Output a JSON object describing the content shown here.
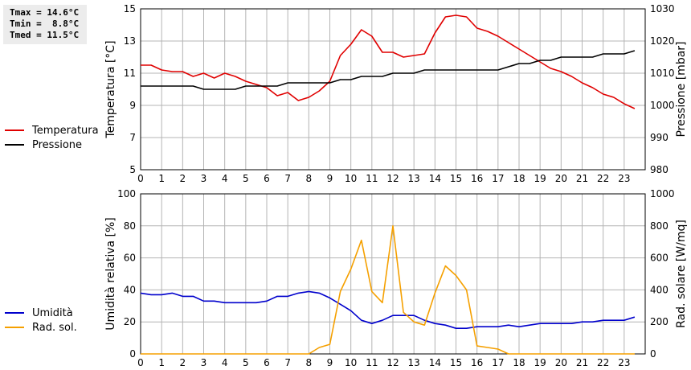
{
  "stats": {
    "tmax": "Tmax = 14.6°C",
    "tmin": "Tmin =  8.8°C",
    "tmed": "Tmed = 11.5°C"
  },
  "colors": {
    "temperatura": "#e00000",
    "pressione": "#000000",
    "umidita": "#0000cc",
    "rad": "#f5a000",
    "grid": "#b4b4b4"
  },
  "chart_data": [
    {
      "type": "line",
      "xlim": [
        0,
        24
      ],
      "xticks": [
        "0",
        "1",
        "2",
        "3",
        "4",
        "5",
        "6",
        "7",
        "8",
        "9",
        "10",
        "11",
        "12",
        "13",
        "14",
        "15",
        "16",
        "17",
        "18",
        "19",
        "20",
        "21",
        "22",
        "23"
      ],
      "ylabel": "Temperatura [°C]",
      "ylim": [
        5,
        15
      ],
      "yticks": [
        "5",
        "7",
        "9",
        "11",
        "13",
        "15"
      ],
      "y2label": "Pressione [mbar]",
      "y2lim": [
        980,
        1030
      ],
      "y2ticks": [
        "980",
        "990",
        "1000",
        "1010",
        "1020",
        "1030"
      ],
      "legend": [
        "Temperatura",
        "Pressione"
      ],
      "series": [
        {
          "name": "Temperatura",
          "axis": "left",
          "x": [
            0,
            0.5,
            1,
            1.5,
            2,
            2.5,
            3,
            3.5,
            4,
            4.5,
            5,
            5.5,
            6,
            6.5,
            7,
            7.5,
            8,
            8.5,
            9,
            9.5,
            10,
            10.5,
            11,
            11.5,
            12,
            12.5,
            13,
            13.5,
            14,
            14.5,
            15,
            15.5,
            16,
            16.5,
            17,
            17.5,
            18,
            18.5,
            19,
            19.5,
            20,
            20.5,
            21,
            21.5,
            22,
            22.5,
            23,
            23.5
          ],
          "y": [
            11.5,
            11.5,
            11.2,
            11.1,
            11.1,
            10.8,
            11.0,
            10.7,
            11.0,
            10.8,
            10.5,
            10.3,
            10.1,
            9.6,
            9.8,
            9.3,
            9.5,
            9.9,
            10.5,
            12.1,
            12.8,
            13.7,
            13.3,
            12.3,
            12.3,
            12.0,
            12.1,
            12.2,
            13.5,
            14.5,
            14.6,
            14.5,
            13.8,
            13.6,
            13.3,
            12.9,
            12.5,
            12.1,
            11.7,
            11.3,
            11.1,
            10.8,
            10.4,
            10.1,
            9.7,
            9.5,
            9.1,
            8.8
          ]
        },
        {
          "name": "Pressione",
          "axis": "right",
          "x": [
            0,
            0.5,
            1,
            1.5,
            2,
            2.5,
            3,
            3.5,
            4,
            4.5,
            5,
            5.5,
            6,
            6.5,
            7,
            7.5,
            8,
            8.5,
            9,
            9.5,
            10,
            10.5,
            11,
            11.5,
            12,
            12.5,
            13,
            13.5,
            14,
            14.5,
            15,
            15.5,
            16,
            16.5,
            17,
            17.5,
            18,
            18.5,
            19,
            19.5,
            20,
            20.5,
            21,
            21.5,
            22,
            22.5,
            23,
            23.5
          ],
          "y": [
            1006,
            1006,
            1006,
            1006,
            1006,
            1006,
            1005,
            1005,
            1005,
            1005,
            1006,
            1006,
            1006,
            1006,
            1007,
            1007,
            1007,
            1007,
            1007,
            1008,
            1008,
            1009,
            1009,
            1009,
            1010,
            1010,
            1010,
            1011,
            1011,
            1011,
            1011,
            1011,
            1011,
            1011,
            1011,
            1012,
            1013,
            1013,
            1014,
            1014,
            1015,
            1015,
            1015,
            1015,
            1016,
            1016,
            1016,
            1017
          ]
        }
      ]
    },
    {
      "type": "line",
      "xlim": [
        0,
        24
      ],
      "xticks": [
        "0",
        "1",
        "2",
        "3",
        "4",
        "5",
        "6",
        "7",
        "8",
        "9",
        "10",
        "11",
        "12",
        "13",
        "14",
        "15",
        "16",
        "17",
        "18",
        "19",
        "20",
        "21",
        "22",
        "23"
      ],
      "ylabel": "Umidità relativa [%]",
      "ylim": [
        0,
        100
      ],
      "yticks": [
        "0",
        "20",
        "40",
        "60",
        "80",
        "100"
      ],
      "y2label": "Rad. solare [W/mq]",
      "y2lim": [
        0,
        1000
      ],
      "y2ticks": [
        "0",
        "200",
        "400",
        "600",
        "800",
        "1000"
      ],
      "legend": [
        "Umidità",
        "Rad. sol."
      ],
      "series": [
        {
          "name": "Umidità",
          "axis": "left",
          "x": [
            0,
            0.5,
            1,
            1.5,
            2,
            2.5,
            3,
            3.5,
            4,
            4.5,
            5,
            5.5,
            6,
            6.5,
            7,
            7.5,
            8,
            8.5,
            9,
            9.5,
            10,
            10.5,
            11,
            11.5,
            12,
            12.5,
            13,
            13.5,
            14,
            14.5,
            15,
            15.5,
            16,
            16.5,
            17,
            17.5,
            18,
            18.5,
            19,
            19.5,
            20,
            20.5,
            21,
            21.5,
            22,
            22.5,
            23,
            23.5
          ],
          "y": [
            38,
            37,
            37,
            38,
            36,
            36,
            33,
            33,
            32,
            32,
            32,
            32,
            33,
            36,
            36,
            38,
            39,
            38,
            35,
            31,
            27,
            21,
            19,
            21,
            24,
            24,
            24,
            21,
            19,
            18,
            16,
            16,
            17,
            17,
            17,
            18,
            17,
            18,
            19,
            19,
            19,
            19,
            20,
            20,
            21,
            21,
            21,
            23
          ]
        },
        {
          "name": "Rad. sol.",
          "axis": "right",
          "x": [
            0,
            0.5,
            1,
            1.5,
            2,
            2.5,
            3,
            3.5,
            4,
            4.5,
            5,
            5.5,
            6,
            6.5,
            7,
            7.5,
            8,
            8.5,
            9,
            9.5,
            10,
            10.5,
            11,
            11.5,
            12,
            12.5,
            13,
            13.5,
            14,
            14.5,
            15,
            15.5,
            16,
            16.5,
            17,
            17.5,
            18,
            18.5,
            19,
            19.5,
            20,
            20.5,
            21,
            21.5,
            22,
            22.5,
            23,
            23.5
          ],
          "y": [
            0,
            0,
            0,
            0,
            0,
            0,
            0,
            0,
            0,
            0,
            0,
            0,
            0,
            0,
            0,
            0,
            0,
            40,
            60,
            390,
            530,
            710,
            390,
            320,
            800,
            260,
            200,
            180,
            380,
            550,
            490,
            400,
            50,
            40,
            30,
            0,
            0,
            0,
            0,
            0,
            0,
            0,
            0,
            0,
            0,
            0,
            0,
            0
          ]
        }
      ]
    }
  ]
}
